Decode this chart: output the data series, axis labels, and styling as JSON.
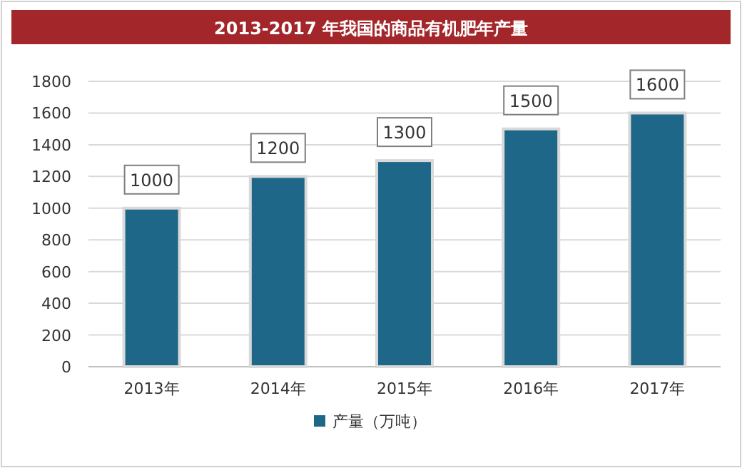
{
  "chart_data": {
    "type": "bar",
    "title": "2013-2017 年我国的商品有机肥年产量",
    "categories": [
      "2013年",
      "2014年",
      "2015年",
      "2016年",
      "2017年"
    ],
    "series": [
      {
        "name": "产量（万吨）",
        "color": "#1f6788",
        "values": [
          1000,
          1200,
          1300,
          1500,
          1600
        ]
      }
    ],
    "ylim": [
      0,
      1800
    ],
    "yticks": [
      0,
      200,
      400,
      600,
      800,
      1000,
      1200,
      1400,
      1600,
      1800
    ],
    "grid": "y",
    "legend": "bottom",
    "data_labels": true
  }
}
